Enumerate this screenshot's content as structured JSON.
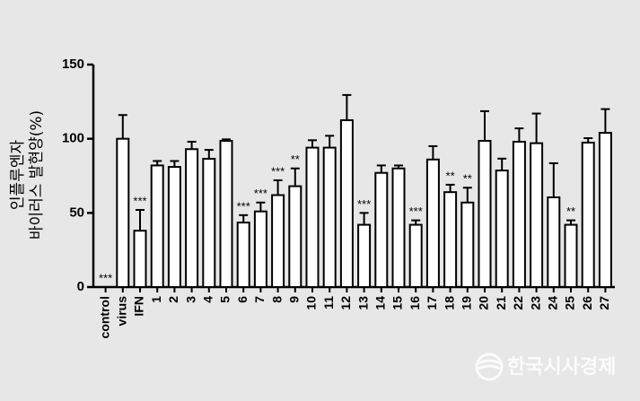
{
  "chart_data": {
    "type": "bar",
    "y_label_lines": [
      "인플루엔자",
      "바이러스 발현양(%)"
    ],
    "categories": [
      "control",
      "virus",
      "IFN",
      "1",
      "2",
      "3",
      "4",
      "5",
      "6",
      "7",
      "8",
      "9",
      "10",
      "11",
      "12",
      "13",
      "14",
      "15",
      "16",
      "17",
      "18",
      "19",
      "20",
      "21",
      "22",
      "23",
      "24",
      "25",
      "26",
      "27"
    ],
    "values": [
      0,
      100,
      38,
      82,
      81,
      93,
      86.5,
      98.6,
      43.5,
      51,
      62,
      68,
      94,
      94,
      112.5,
      42,
      77,
      80,
      42,
      86,
      64,
      57,
      98.6,
      78.6,
      98,
      97,
      60.5,
      42,
      97.4,
      104
    ],
    "errors": [
      0,
      16,
      14,
      3,
      4,
      5,
      6,
      1,
      5,
      6,
      10,
      12,
      5,
      8,
      17,
      8,
      5,
      2,
      3,
      9,
      5,
      10,
      20,
      8,
      9,
      20,
      23,
      3,
      3,
      16
    ],
    "annotations": [
      "***",
      null,
      "***",
      null,
      null,
      null,
      null,
      null,
      "***",
      "***",
      "***",
      "**",
      null,
      null,
      null,
      "***",
      null,
      null,
      "***",
      null,
      "**",
      "**",
      null,
      null,
      null,
      null,
      null,
      "**",
      null,
      null
    ],
    "color": "#ffffff",
    "ylim": [
      0,
      150
    ],
    "yticks": [
      0,
      50,
      100,
      150
    ],
    "grid": false,
    "watermark": "한국시사경제"
  }
}
